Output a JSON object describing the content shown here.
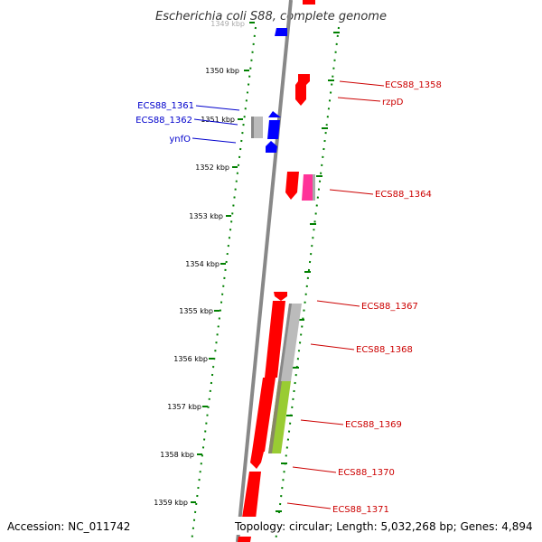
{
  "title": "Escherichia coli S88, complete genome",
  "footer": {
    "accession": "Accession: NC_011742",
    "summary": "Topology: circular; Length: 5,032,268 bp; Genes: 4,894"
  },
  "colors": {
    "forward_gene": "#ff0000",
    "reverse_gene": "#0000ff",
    "pseudo_gene": "#bbbbbb",
    "rna_gene": "#ff3399",
    "other_gene": "#99cc33",
    "tick": "#008000",
    "backbone": "#888888"
  },
  "ruler": {
    "labels": [
      "1349 kbp",
      "1350 kbp",
      "1351 kbp",
      "1352 kbp",
      "1353 kbp",
      "1354 kbp",
      "1355 kbp",
      "1356 kbp",
      "1357 kbp",
      "1358 kbp",
      "1359 kbp"
    ]
  },
  "gene_labels": {
    "ecs88_1358": "ECS88_1358",
    "rzpd": "rzpD",
    "ecs88_1361": "ECS88_1361",
    "ecs88_1362": "ECS88_1362",
    "ynfo": "ynfO",
    "ecs88_1364": "ECS88_1364",
    "ecs88_1367": "ECS88_1367",
    "ecs88_1368": "ECS88_1368",
    "ecs88_1369": "ECS88_1369",
    "ecs88_1370": "ECS88_1370",
    "ecs88_1371": "ECS88_1371"
  }
}
